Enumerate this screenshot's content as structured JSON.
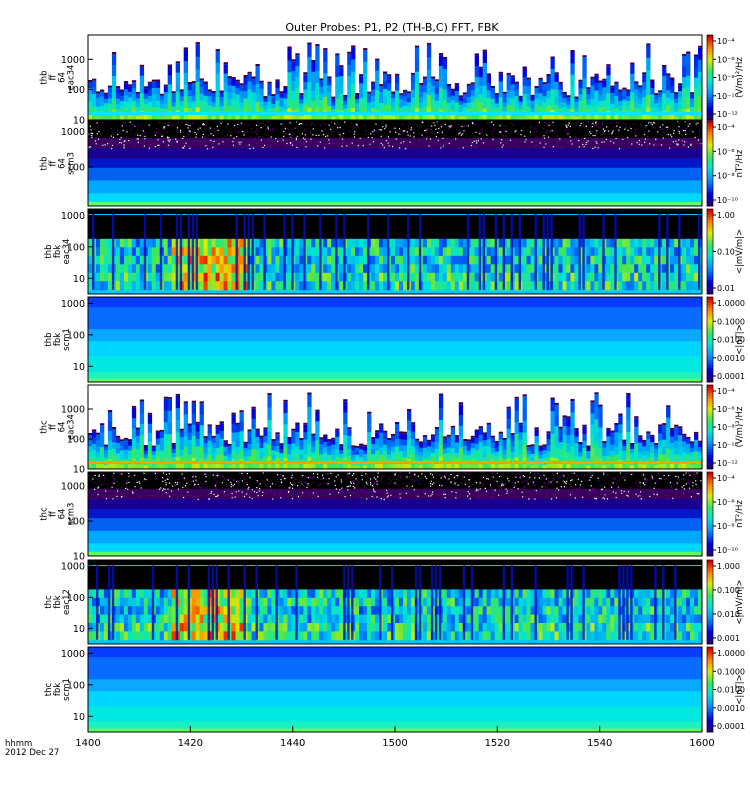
{
  "chart_data": {
    "type": "heatmap",
    "title": "Outer Probes: P1, P2 (TH-B,C) FFT, FBK",
    "x_axis": {
      "range": [
        1400,
        1600
      ],
      "ticks": [
        "1400",
        "1420",
        "1440",
        "1500",
        "1520",
        "1540",
        "1600"
      ],
      "label_line1": "hhmm",
      "label_line2": "2012 Dec 27"
    },
    "panels": [
      {
        "id": "thb-ff-eac34",
        "ylabel": [
          "thb",
          "ff",
          "64",
          "eac34"
        ],
        "yticks": [
          "10",
          "100",
          "1000"
        ],
        "ylog_range": [
          1,
          3.8
        ],
        "cbar_label": "(V/m)²/Hz",
        "cbar_ticks": [
          "10⁻⁴",
          "10⁻⁶",
          "10⁻⁸",
          "10⁻¹⁰",
          "10⁻¹²"
        ],
        "style": "ffe",
        "spikes": true
      },
      {
        "id": "thb-ff-scm3",
        "ylabel": [
          "thb",
          "ff",
          "64",
          "scm3"
        ],
        "yticks": [
          "100",
          "1000"
        ],
        "ylog_range": [
          0.9,
          3.3
        ],
        "cbar_label": "nT²/Hz",
        "cbar_ticks": [
          "10⁻⁴",
          "10⁻⁶",
          "10⁻⁸",
          "10⁻¹⁰"
        ],
        "style": "ffb",
        "spikes": false
      },
      {
        "id": "thb-fbk-eac34",
        "ylabel": [
          "thb",
          "fbk",
          "eac34"
        ],
        "yticks": [
          "10",
          "100",
          "1000"
        ],
        "ylog_range": [
          0.5,
          3.2
        ],
        "cbar_label": "<|mV/m|>",
        "cbar_ticks": [
          "1.00",
          "0.10",
          "0.01"
        ],
        "style": "fbe",
        "spikes": false
      },
      {
        "id": "thb-fbk-scm1",
        "ylabel": [
          "thb",
          "fbk",
          "scm1"
        ],
        "yticks": [
          "10",
          "100",
          "1000"
        ],
        "ylog_range": [
          0.5,
          3.2
        ],
        "cbar_label": "<|nT|>",
        "cbar_ticks": [
          "1.0000",
          "0.1000",
          "0.0100",
          "0.0010",
          "0.0001"
        ],
        "style": "fbb",
        "spikes": false
      },
      {
        "id": "thc-ff-eac34",
        "ylabel": [
          "thc",
          "ff",
          "64",
          "eac34"
        ],
        "yticks": [
          "10",
          "100",
          "1000"
        ],
        "ylog_range": [
          1,
          3.8
        ],
        "cbar_label": "(V/m)²/Hz",
        "cbar_ticks": [
          "10⁻⁴",
          "10⁻⁶",
          "10⁻⁸",
          "10⁻¹⁰",
          "10⁻¹²"
        ],
        "style": "ffe",
        "spikes": true
      },
      {
        "id": "thc-ff-scm3",
        "ylabel": [
          "thc",
          "ff",
          "64",
          "scm3"
        ],
        "yticks": [
          "10",
          "100",
          "1000"
        ],
        "ylog_range": [
          1,
          3.4
        ],
        "cbar_label": "nT²/Hz",
        "cbar_ticks": [
          "10⁻⁴",
          "10⁻⁶",
          "10⁻⁸",
          "10⁻¹⁰"
        ],
        "style": "ffb",
        "spikes": false
      },
      {
        "id": "thc-fbk-eac12",
        "ylabel": [
          "thc",
          "fbk",
          "eac12"
        ],
        "yticks": [
          "10",
          "100",
          "1000"
        ],
        "ylog_range": [
          0.5,
          3.2
        ],
        "cbar_label": "<|mV/m|>",
        "cbar_ticks": [
          "1.000",
          "0.100",
          "0.010",
          "0.001"
        ],
        "style": "fbe",
        "spikes": false
      },
      {
        "id": "thc-fbk-scm1",
        "ylabel": [
          "thc",
          "fbk",
          "scm1"
        ],
        "yticks": [
          "10",
          "100",
          "1000"
        ],
        "ylog_range": [
          0.5,
          3.2
        ],
        "cbar_label": "<|nT|>",
        "cbar_ticks": [
          "1.0000",
          "0.1000",
          "0.0100",
          "0.0010",
          "0.0001"
        ],
        "style": "fbb",
        "spikes": false
      }
    ]
  }
}
